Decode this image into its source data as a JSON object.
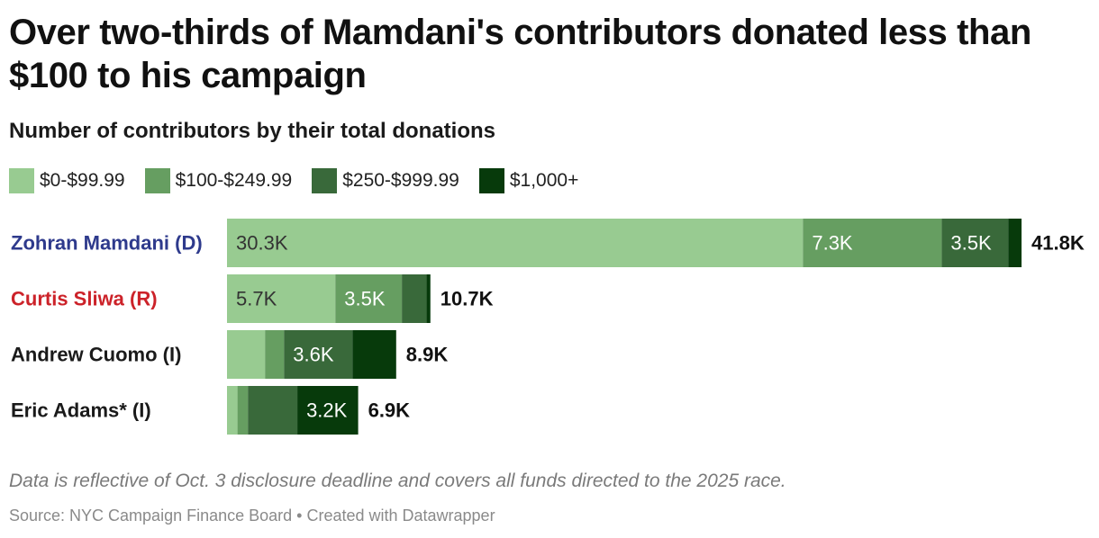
{
  "header": {
    "title": "Over two-thirds of Mamdani's contributors donated less than $100 to his campaign",
    "subtitle": "Number of contributors by their total donations"
  },
  "footer": {
    "note": "Data is reflective of Oct. 3 disclosure deadline and covers all funds directed to the 2025 race.",
    "source": "Source: NYC Campaign Finance Board • Created with Datawrapper"
  },
  "chart_data": {
    "type": "bar",
    "orientation": "horizontal",
    "stacked": true,
    "title": "Over two-thirds of Mamdani's contributors donated less than $100 to his campaign",
    "subtitle": "Number of contributors by their total donations",
    "xlim": [
      0,
      41800
    ],
    "legend_position": "top-left",
    "categories": [
      "Zohran Mamdani (D)",
      "Curtis Sliwa (R)",
      "Andrew Cuomo (I)",
      "Eric Adams* (I)"
    ],
    "category_colors": [
      "#2e3a8c",
      "#cc2229",
      "#1a1a1a",
      "#1a1a1a"
    ],
    "series": [
      {
        "name": "$0-$99.99",
        "color": "#98cb91",
        "label_color": "#333333",
        "values": [
          30300,
          5700,
          2000,
          550
        ],
        "labels": [
          "30.3K",
          "5.7K",
          "",
          ""
        ]
      },
      {
        "name": "$100-$249.99",
        "color": "#669e61",
        "label_color": "#ffffff",
        "values": [
          7300,
          3500,
          1000,
          550
        ],
        "labels": [
          "7.3K",
          "3.5K",
          "",
          ""
        ]
      },
      {
        "name": "$250-$999.99",
        "color": "#39693a",
        "label_color": "#ffffff",
        "values": [
          3500,
          1300,
          3600,
          2600
        ],
        "labels": [
          "3.5K",
          "",
          "3.6K",
          ""
        ]
      },
      {
        "name": "$1,000+",
        "color": "#073a0b",
        "label_color": "#ffffff",
        "values": [
          700,
          200,
          2300,
          3200
        ],
        "labels": [
          "",
          "",
          "",
          "3.2K"
        ]
      }
    ],
    "totals": [
      "41.8K",
      "10.7K",
      "8.9K",
      "6.9K"
    ]
  }
}
